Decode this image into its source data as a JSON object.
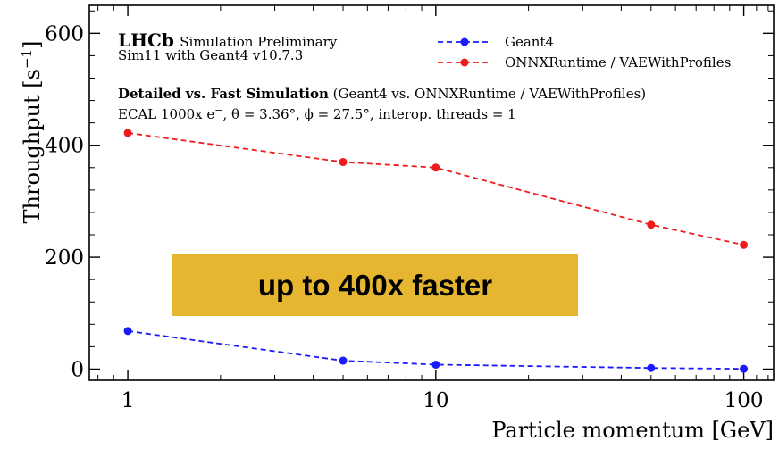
{
  "chart_data": {
    "type": "line",
    "title": "",
    "xlabel": "Particle momentum [GeV]",
    "ylabel_main": "Throughput [s",
    "ylabel_sup": "−1",
    "ylabel_close": "]",
    "xscale": "log",
    "xlim": [
      0.75,
      125
    ],
    "ylim": [
      -20,
      650
    ],
    "x_ticks": [
      1,
      10,
      100
    ],
    "x_tick_labels": [
      "1",
      "10",
      "100"
    ],
    "y_ticks": [
      0,
      200,
      400,
      600
    ],
    "y_tick_labels": [
      "0",
      "200",
      "400",
      "600"
    ],
    "grid": false,
    "legend_position": "top-right",
    "series": [
      {
        "name": "Geant4",
        "color": "#1a1aff",
        "style": "dashed",
        "marker": "circle",
        "x": [
          1,
          5,
          10,
          50,
          100
        ],
        "y": [
          68,
          15,
          8,
          2,
          0.5
        ]
      },
      {
        "name": "ONNXRuntime / VAEWithProfiles",
        "color": "#ee1c1c",
        "style": "dashed",
        "marker": "circle",
        "x": [
          1,
          5,
          10,
          50,
          100
        ],
        "y": [
          422,
          370,
          360,
          258,
          222
        ]
      }
    ],
    "annotations": {
      "experiment": "LHCb",
      "experiment_sub": "Simulation Preliminary",
      "sim_version": "Sim11 with Geant4 v10.7.3",
      "comparison_bold": "Detailed vs. Fast Simulation",
      "comparison_rest": "(Geant4 vs. ONNXRuntime / VAEWithProfiles)",
      "config_prefix": "ECAL 1000x e",
      "config_sup": "−",
      "config_rest": ", θ = 3.36°, ϕ = 27.5°, interop. threads = 1"
    },
    "banner": {
      "text": "up to 400x faster",
      "bg_color": "#e6b631",
      "text_color": "#ffffff"
    }
  }
}
